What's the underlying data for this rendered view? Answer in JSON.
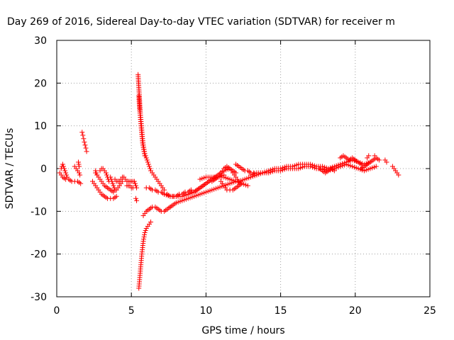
{
  "chart_data": {
    "type": "scatter",
    "title": "Day 269 of 2016, Sidereal Day-to-day VTEC variation (SDTVAR) for receiver m",
    "xlabel": "GPS time / hours",
    "ylabel": "SDTVAR / TECUs",
    "xlim": [
      0,
      25
    ],
    "ylim": [
      -30,
      30
    ],
    "xticks": [
      0,
      5,
      10,
      15,
      20,
      25
    ],
    "yticks": [
      -30,
      -20,
      -10,
      0,
      10,
      20,
      30
    ],
    "grid": true,
    "marker": "+",
    "color": "#ff0000",
    "segments": [
      {
        "x": [
          0.2,
          0.4,
          0.6,
          0.8,
          1.0,
          1.2,
          1.4,
          1.6
        ],
        "y": [
          -1,
          -2,
          -2.5,
          -2.5,
          -3,
          -3,
          -3,
          -3.5
        ]
      },
      {
        "x": [
          0.3,
          0.4,
          0.5,
          0.6,
          0.7
        ],
        "y": [
          0,
          1,
          0,
          -1,
          -2
        ]
      },
      {
        "x": [
          1.2,
          1.3,
          1.4,
          1.5,
          1.55
        ],
        "y": [
          0.5,
          0,
          -0.5,
          -1,
          -1.5
        ]
      },
      {
        "x": [
          1.45,
          1.5
        ],
        "y": [
          1.5,
          0.5
        ]
      },
      {
        "x": [
          1.7,
          1.75,
          1.8,
          1.85,
          1.9,
          1.95,
          2.0
        ],
        "y": [
          8.5,
          7.8,
          7,
          6.2,
          5.5,
          4.8,
          4
        ]
      },
      {
        "x": [
          2.4,
          2.6,
          2.8,
          3.0,
          3.2,
          3.4,
          3.6,
          3.8,
          4.0
        ],
        "y": [
          -3,
          -4,
          -5,
          -6,
          -6.5,
          -7,
          -7,
          -7,
          -6.5
        ]
      },
      {
        "x": [
          2.6,
          2.8,
          3.0,
          3.2,
          3.4,
          3.6,
          3.8
        ],
        "y": [
          -1,
          -2,
          -3,
          -4,
          -4.5,
          -5,
          -5.5
        ]
      },
      {
        "x": [
          2.9,
          3.0,
          3.1,
          3.2,
          3.3,
          3.4,
          3.5
        ],
        "y": [
          -0.5,
          0,
          0,
          -0.5,
          -1,
          -2,
          -3
        ]
      },
      {
        "x": [
          3.6,
          3.7,
          3.8,
          3.9,
          4.0,
          4.1,
          4.2,
          4.3,
          4.4
        ],
        "y": [
          -2,
          -3,
          -4,
          -5,
          -5,
          -4.5,
          -4,
          -3.5,
          -3
        ]
      },
      {
        "x": [
          2.6,
          2.7
        ],
        "y": [
          -0.5,
          -1.5
        ]
      },
      {
        "x": [
          3.9,
          4.0,
          4.1,
          4.2,
          4.3,
          4.4,
          4.5
        ],
        "y": [
          -2.5,
          -3,
          -3,
          -3,
          -2.5,
          -2,
          -2
        ]
      },
      {
        "x": [
          4.6,
          4.7,
          4.8,
          4.9,
          5.0,
          5.1
        ],
        "y": [
          -2.5,
          -3,
          -3,
          -3,
          -3,
          -3
        ]
      },
      {
        "x": [
          4.7,
          4.8,
          4.9,
          5.0,
          5.1
        ],
        "y": [
          -4,
          -4,
          -4,
          -4.5,
          -4.5
        ]
      },
      {
        "x": [
          5.2,
          5.25,
          5.3,
          5.35
        ],
        "y": [
          -3,
          -3.5,
          -4,
          -4.5
        ]
      },
      {
        "x": [
          5.3,
          5.35
        ],
        "y": [
          -7,
          -7.5
        ]
      },
      {
        "x": [
          5.45,
          5.5,
          5.55,
          5.6,
          5.65,
          5.7,
          5.75,
          5.8,
          5.85,
          5.9,
          6.0,
          6.1,
          6.2,
          6.3,
          6.4,
          6.5,
          6.6,
          6.7,
          6.8,
          6.9,
          7.0,
          7.1,
          7.2
        ],
        "y": [
          22,
          19,
          16,
          13,
          11,
          9,
          7,
          5.5,
          4.5,
          3.5,
          2.5,
          1.5,
          0.5,
          -0.5,
          -1,
          -1.5,
          -2,
          -2.5,
          -3,
          -3.5,
          -4,
          -4.5,
          -5
        ]
      },
      {
        "x": [
          5.5,
          5.55,
          5.6,
          5.65,
          5.7,
          5.75,
          5.8,
          5.85,
          5.9
        ],
        "y": [
          17,
          14,
          12,
          10,
          8,
          6,
          5,
          4,
          3
        ]
      },
      {
        "x": [
          5.5,
          5.55,
          5.6,
          5.65,
          5.7,
          5.75,
          5.8,
          5.85,
          5.9,
          6.0,
          6.1,
          6.2,
          6.3
        ],
        "y": [
          -28,
          -26,
          -24,
          -22,
          -20,
          -18.5,
          -17,
          -16,
          -15,
          -14,
          -13.5,
          -13,
          -12.5
        ]
      },
      {
        "x": [
          5.8,
          6.0,
          6.2,
          6.4,
          6.6,
          6.8,
          7.0,
          7.2,
          7.4,
          7.6
        ],
        "y": [
          -11,
          -10,
          -9.5,
          -9,
          -9,
          -9.5,
          -10,
          -10,
          -9.5,
          -9
        ]
      },
      {
        "x": [
          6.0,
          6.2,
          6.4,
          6.6,
          6.8,
          7.0,
          7.2,
          7.4,
          7.6,
          7.8,
          8.0,
          8.2,
          8.4,
          8.6,
          8.8,
          9.0
        ],
        "y": [
          -4.5,
          -4.5,
          -5,
          -5,
          -5.5,
          -5.5,
          -6,
          -6,
          -6.5,
          -6.5,
          -6.5,
          -6,
          -6,
          -5.5,
          -5.5,
          -5
        ]
      },
      {
        "x": [
          7.6,
          8.0,
          8.4,
          8.8,
          9.2,
          9.6,
          10.0,
          10.4,
          10.8,
          11.2,
          11.6,
          12.0
        ],
        "y": [
          -9,
          -8,
          -7.5,
          -7,
          -6.5,
          -6,
          -5.5,
          -5,
          -4.5,
          -4,
          -3.5,
          -3
        ]
      },
      {
        "x": [
          7.2,
          7.6,
          8.0,
          8.4,
          8.8,
          9.2,
          9.6,
          10.0,
          10.4,
          10.8,
          11.2
        ],
        "y": [
          -6,
          -6.5,
          -6.5,
          -6.5,
          -6,
          -5.5,
          -4.5,
          -3.5,
          -2.5,
          -2,
          -1.5
        ]
      },
      {
        "x": [
          8.8,
          9.2,
          9.6,
          10.0,
          10.4,
          10.8,
          11.2,
          11.6,
          12.0
        ],
        "y": [
          -6,
          -5.5,
          -4.5,
          -3.5,
          -2.5,
          -1.5,
          -0.5,
          0,
          -1
        ]
      },
      {
        "x": [
          10.4,
          10.6,
          10.8,
          11.0,
          11.2,
          11.4,
          11.6,
          11.8,
          12.0,
          12.2
        ],
        "y": [
          -3,
          -2.5,
          -2,
          -1,
          0,
          0.5,
          0,
          -1,
          -2,
          -3
        ]
      },
      {
        "x": [
          9.6,
          10.0,
          10.4,
          10.8,
          11.2,
          11.6,
          12.0,
          12.4,
          12.8
        ],
        "y": [
          -2.5,
          -2,
          -2,
          -2,
          -2,
          -2.5,
          -3,
          -3.5,
          -4
        ]
      },
      {
        "x": [
          11.0,
          11.2,
          11.4,
          11.6,
          11.8,
          12.0,
          12.2,
          12.4
        ],
        "y": [
          -3,
          -4,
          -5,
          -5,
          -5,
          -4.5,
          -4,
          -3.5
        ]
      },
      {
        "x": [
          12.0,
          12.2,
          12.4,
          12.6,
          12.8,
          13.0,
          13.2
        ],
        "y": [
          1,
          0.5,
          0,
          -0.5,
          -0.5,
          -1,
          -1
        ]
      },
      {
        "x": [
          12.2,
          12.6,
          13.0,
          13.4,
          13.8,
          14.2,
          14.6,
          15.0,
          15.4,
          15.8,
          16.2,
          16.6,
          17.0,
          17.4,
          17.8,
          18.2,
          18.6,
          19.0,
          19.4,
          19.8,
          20.2,
          20.6,
          21.0,
          21.4
        ],
        "y": [
          -3,
          -2.5,
          -2,
          -1.5,
          -1,
          -1,
          -0.5,
          -0.5,
          0,
          0,
          0,
          0.5,
          0.5,
          0,
          0,
          -0.5,
          0,
          0.5,
          1,
          0.5,
          0,
          -0.5,
          0,
          0.5
        ]
      },
      {
        "x": [
          13.0,
          13.4,
          13.8,
          14.2,
          14.6,
          15.0,
          15.4,
          15.8,
          16.2,
          16.6,
          17.0,
          17.4,
          17.8,
          18.2,
          18.6,
          19.0,
          19.4,
          19.8,
          20.2,
          20.6,
          21.0
        ],
        "y": [
          -1.5,
          -1,
          -1,
          -0.5,
          0,
          0,
          0.5,
          0.5,
          1,
          1,
          1,
          0.5,
          0.5,
          0,
          0.5,
          1,
          1.5,
          2,
          1.5,
          1,
          1.5
        ]
      },
      {
        "x": [
          17.6,
          17.8,
          18.0,
          18.2,
          18.4,
          18.6
        ],
        "y": [
          0,
          -0.5,
          -1,
          -0.5,
          0,
          -0.5
        ]
      },
      {
        "x": [
          19.0,
          19.2,
          19.4,
          19.6,
          19.8,
          20.0,
          20.2,
          20.4
        ],
        "y": [
          2.5,
          3,
          2.5,
          2,
          2.5,
          2,
          1.5,
          1
        ]
      },
      {
        "x": [
          20.4,
          20.6,
          20.8,
          21.0,
          21.2,
          21.4,
          21.6
        ],
        "y": [
          0,
          0.5,
          1,
          1.5,
          2,
          2.5,
          2
        ]
      },
      {
        "x": [
          20.8,
          20.9
        ],
        "y": [
          2.5,
          3
        ]
      },
      {
        "x": [
          21.3
        ],
        "y": [
          3
        ]
      },
      {
        "x": [
          22.0,
          22.1
        ],
        "y": [
          2,
          1.5
        ]
      },
      {
        "x": [
          22.5,
          22.6,
          22.7,
          22.8,
          22.9
        ],
        "y": [
          0.5,
          0,
          -0.5,
          -1,
          -1.5
        ]
      }
    ]
  }
}
